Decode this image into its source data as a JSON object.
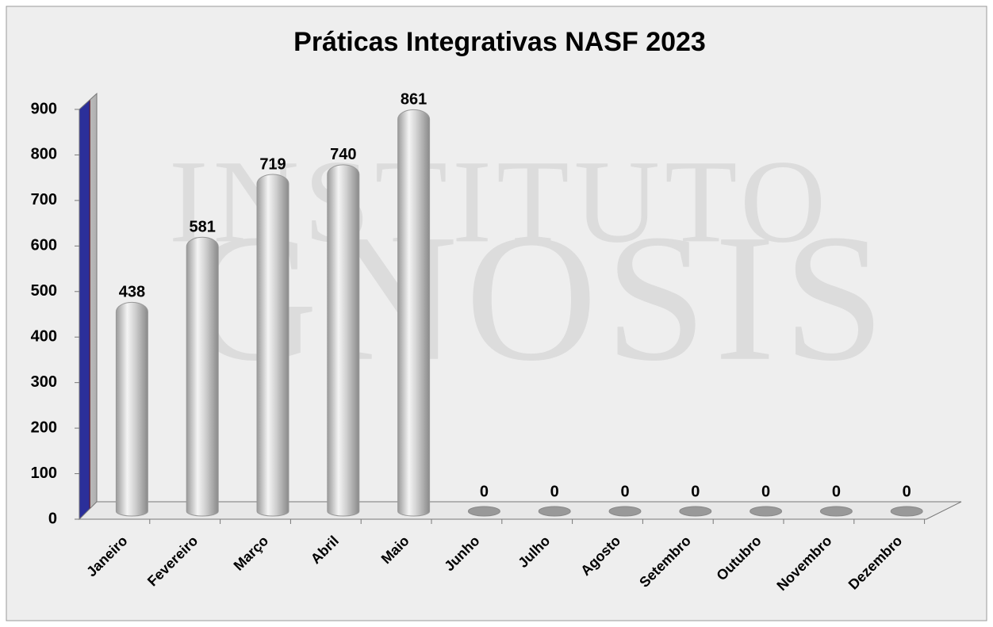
{
  "chart_data": {
    "type": "bar",
    "title": "Práticas Integrativas NASF 2023",
    "watermark": [
      "INSTITUTO",
      "GNOSIS"
    ],
    "categories": [
      "Janeiro",
      "Fevereiro",
      "Março",
      "Abril",
      "Maio",
      "Junho",
      "Julho",
      "Agosto",
      "Setembro",
      "Outubro",
      "Novembro",
      "Dezembro"
    ],
    "values": [
      438,
      581,
      719,
      740,
      861,
      0,
      0,
      0,
      0,
      0,
      0,
      0
    ],
    "color": "#c8c8c8",
    "ylim": [
      0,
      900
    ],
    "yticks": [
      0,
      100,
      200,
      300,
      400,
      500,
      600,
      700,
      800,
      900
    ],
    "grid": false
  }
}
